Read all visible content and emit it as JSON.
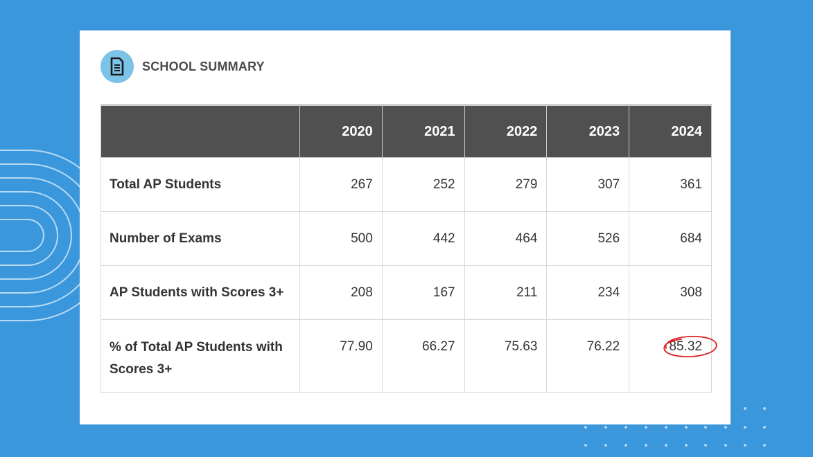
{
  "section": {
    "icon": "document-icon",
    "title": "SCHOOL SUMMARY"
  },
  "table": {
    "headers": [
      "",
      "2020",
      "2021",
      "2022",
      "2023",
      "2024"
    ],
    "rows": [
      {
        "label": "Total AP Students",
        "values": [
          "267",
          "252",
          "279",
          "307",
          "361"
        ]
      },
      {
        "label": "Number of Exams",
        "values": [
          "500",
          "442",
          "464",
          "526",
          "684"
        ]
      },
      {
        "label": "AP Students with Scores 3+",
        "values": [
          "208",
          "167",
          "211",
          "234",
          "308"
        ]
      },
      {
        "label": "% of Total AP Students with Scores 3+",
        "values": [
          "77.90",
          "66.27",
          "75.63",
          "76.22",
          "85.32"
        ]
      }
    ],
    "highlight": {
      "row": 3,
      "col": 4,
      "color": "#e02020",
      "style": "hand-drawn-circle"
    }
  },
  "colors": {
    "background": "#3a97dc",
    "header_bg": "#505050",
    "icon_circle": "#7cc3e8"
  }
}
